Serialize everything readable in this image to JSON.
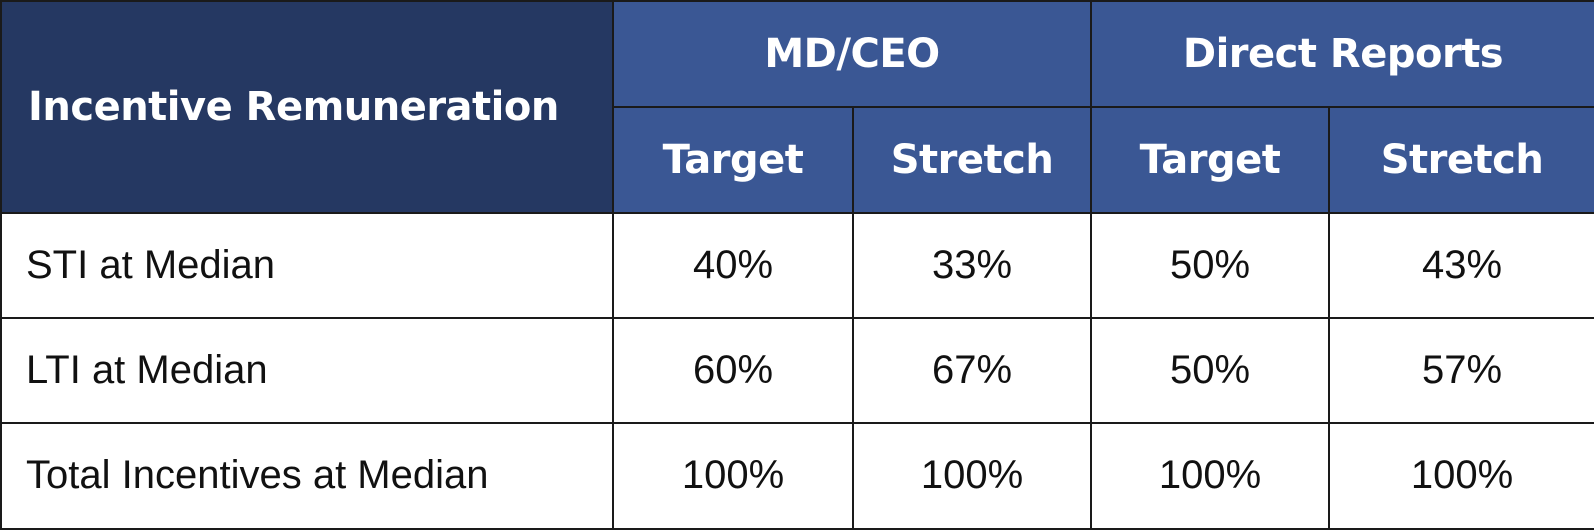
{
  "table": {
    "corner_header": "Incentive Remuneration",
    "groups": [
      {
        "label": "MD/CEO",
        "sub": [
          "Target",
          "Stretch"
        ]
      },
      {
        "label": "Direct Reports",
        "sub": [
          "Target",
          "Stretch"
        ]
      }
    ],
    "rows": [
      {
        "label": "STI at Median",
        "values": [
          "40%",
          "33%",
          "50%",
          "43%"
        ]
      },
      {
        "label": "LTI at Median",
        "values": [
          "60%",
          "67%",
          "50%",
          "57%"
        ]
      },
      {
        "label": "Total Incentives at Median",
        "values": [
          "100%",
          "100%",
          "100%",
          "100%"
        ]
      }
    ]
  },
  "chart_data": {
    "type": "table",
    "title": "",
    "columns": [
      "Incentive Remuneration",
      "MD/CEO Target",
      "MD/CEO Stretch",
      "Direct Reports Target",
      "Direct Reports Stretch"
    ],
    "rows": [
      [
        "STI at Median",
        40,
        33,
        50,
        43
      ],
      [
        "LTI at Median",
        60,
        67,
        50,
        57
      ],
      [
        "Total Incentives at Median",
        100,
        100,
        100,
        100
      ]
    ],
    "unit": "%"
  },
  "colors": {
    "corner_header_bg": "#253862",
    "header_bg": "#3a5794",
    "header_text": "#ffffff",
    "border": "#1a1a1a"
  }
}
